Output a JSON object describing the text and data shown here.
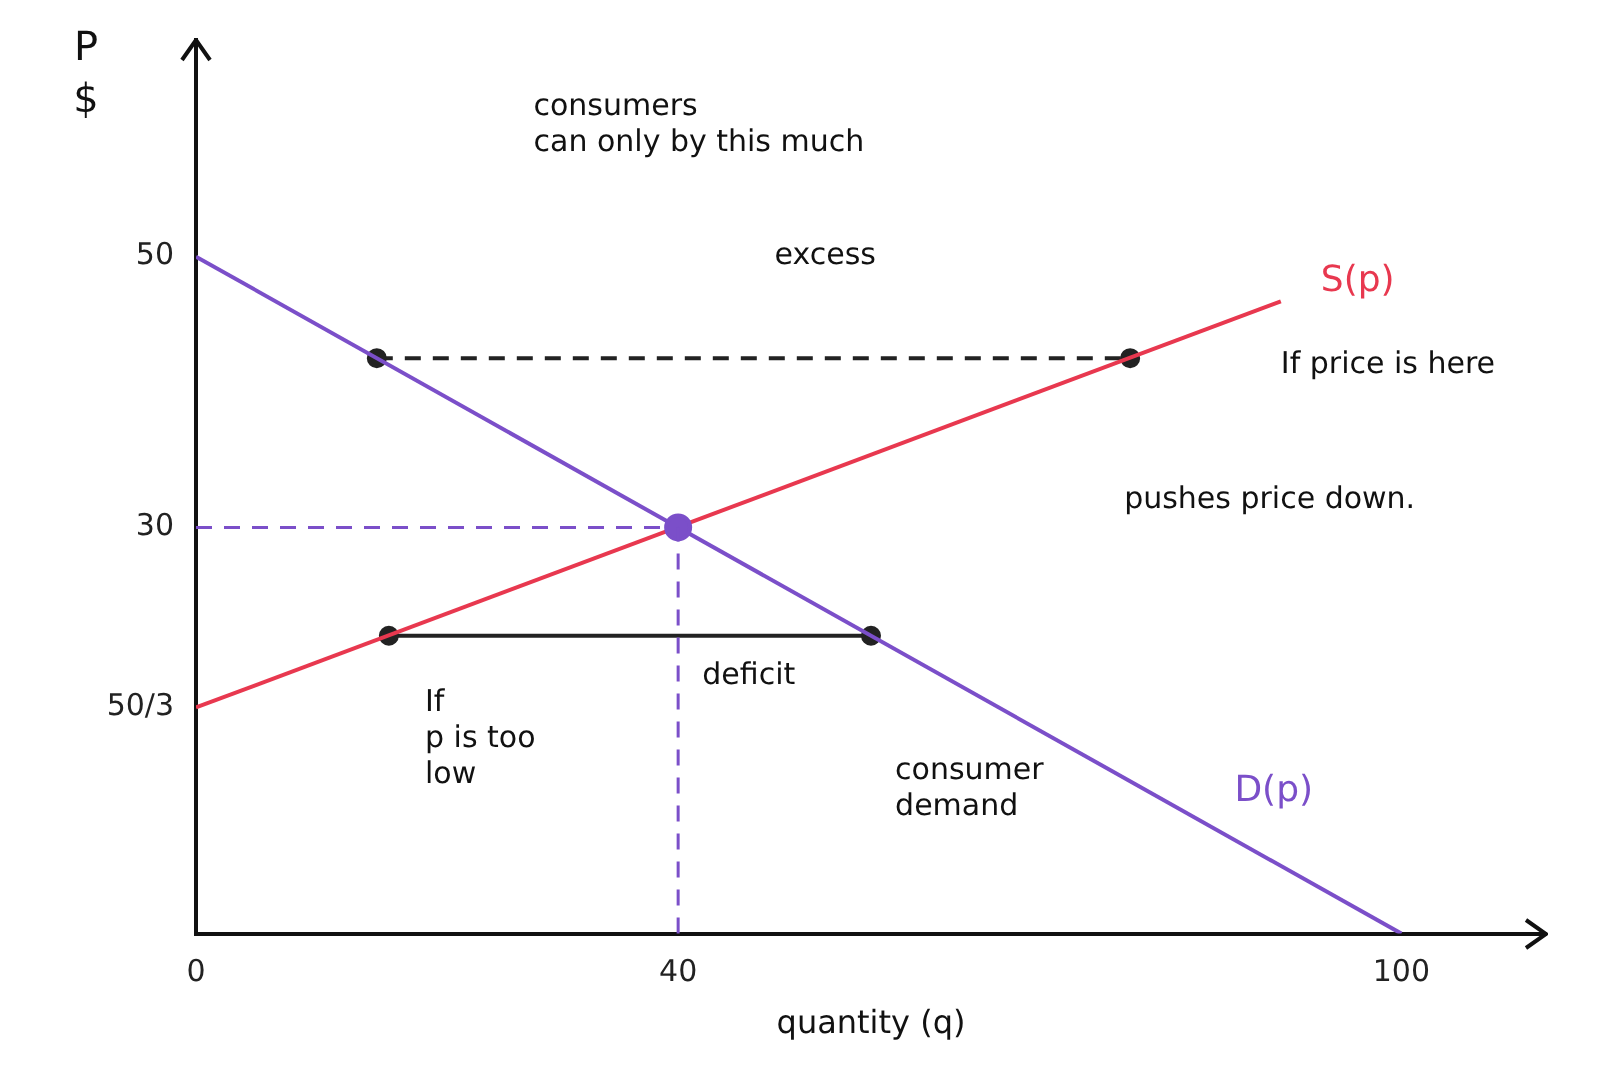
{
  "chart_data": {
    "type": "line",
    "xlabel": "quantity (q)",
    "ylabel": "P\n$",
    "xlim": [
      0,
      112
    ],
    "ylim": [
      0,
      66
    ],
    "xticks": [
      0,
      40,
      100
    ],
    "yticks": [
      {
        "value": 16.7,
        "label": "50/3"
      },
      30,
      50
    ],
    "grid": false,
    "legend": false,
    "series": [
      {
        "name": "S(p)",
        "color": "#e8384f",
        "x": [
          0,
          90
        ],
        "values": [
          16.7,
          46.7
        ],
        "marker": "none",
        "line_style": "solid"
      },
      {
        "name": "D(p)",
        "color": "#7b4fc9",
        "x": [
          0,
          100
        ],
        "values": [
          50,
          0
        ],
        "marker": "none",
        "line_style": "solid"
      },
      {
        "color": "#222222",
        "x": [
          15,
          77.5
        ],
        "values": [
          42.5,
          42.5
        ],
        "marker": "circle",
        "line_style": "dashed"
      },
      {
        "color": "#222222",
        "x": [
          16,
          56
        ],
        "values": [
          22,
          22
        ],
        "marker": "circle",
        "line_style": "solid"
      },
      {
        "type": "scatter",
        "color": "#7b4fc9",
        "x": [
          40
        ],
        "values": [
          30
        ],
        "marker": "circle"
      }
    ],
    "ref_lines": [
      {
        "axis": "y",
        "value": 30,
        "color": "#7b4fc9",
        "line_style": "dashed"
      },
      {
        "axis": "x",
        "value": 40,
        "color": "#7b4fc9",
        "line_style": "dashed"
      }
    ],
    "annotations": [
      "consumers\ncan only by this much",
      "excess",
      "If price is here",
      "pushes price down.",
      "deficit",
      "If\np is too\nlow",
      "consumer\ndemand"
    ]
  }
}
